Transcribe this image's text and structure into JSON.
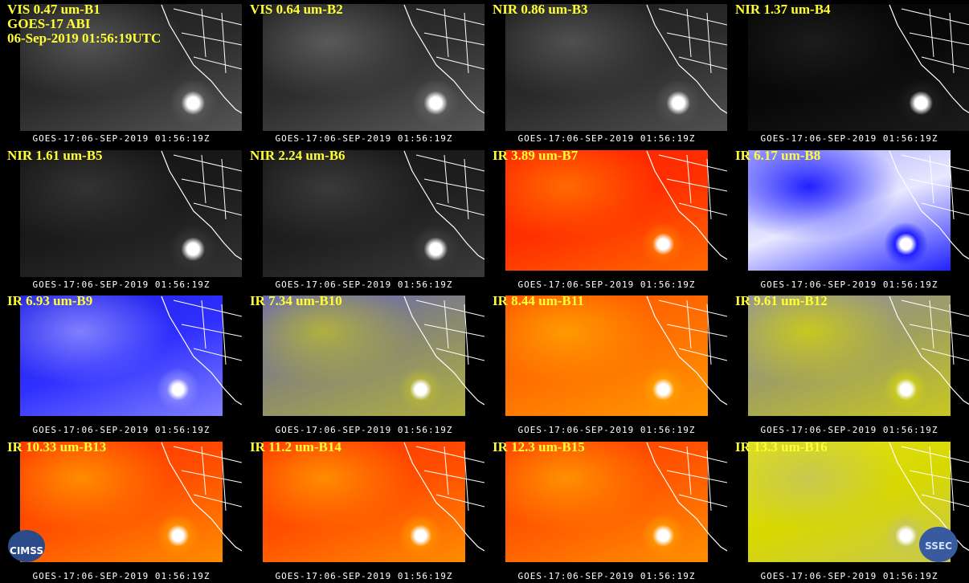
{
  "header": {
    "lines": [
      "GOES-17 ABI",
      "06-Sep-2019 01:56:19UTC"
    ]
  },
  "panels": [
    {
      "label": "VIS 0.47 um-B1",
      "footer": "GOES-17:06-SEP-2019 01:56:19Z",
      "colors": [
        "#2a2a2a",
        "#555555",
        "#1a1a1a"
      ]
    },
    {
      "label": "VIS 0.64 um-B2",
      "footer": "GOES-17:06-SEP-2019 01:56:19Z",
      "colors": [
        "#2e2e2e",
        "#5a5a5a",
        "#1c1c1c"
      ]
    },
    {
      "label": "NIR 0.86 um-B3",
      "footer": "GOES-17:06-SEP-2019 01:56:19Z",
      "colors": [
        "#2a2a2a",
        "#505050",
        "#1a1a1a"
      ]
    },
    {
      "label": "NIR 1.37 um-B4",
      "footer": "GOES-17:06-SEP-2019 01:56:19Z",
      "colors": [
        "#080808",
        "#1c1c1c",
        "#050505"
      ]
    },
    {
      "label": "NIR 1.61 um-B5",
      "footer": "GOES-17:06-SEP-2019 01:56:19Z",
      "colors": [
        "#1a1a1a",
        "#333333",
        "#121212"
      ]
    },
    {
      "label": "NIR 2.24 um-B6",
      "footer": "GOES-17:06-SEP-2019 01:56:19Z",
      "colors": [
        "#1e1e1e",
        "#3a3a3a",
        "#141414"
      ]
    },
    {
      "label": "IR 3.89 um-B7",
      "footer": "GOES-17:06-SEP-2019 01:56:19Z",
      "colors": [
        "#ff3000",
        "#ff6a00",
        "#ff2200"
      ]
    },
    {
      "label": "IR 6.17 um-B8",
      "footer": "GOES-17:06-SEP-2019 01:56:19Z",
      "colors": [
        "#e8e8ff",
        "#2020ff",
        "#a0a0ff"
      ]
    },
    {
      "label": "IR 6.93 um-B9",
      "footer": "GOES-17:06-SEP-2019 01:56:19Z",
      "colors": [
        "#3030ff",
        "#8080ff",
        "#2020e0"
      ]
    },
    {
      "label": "IR 7.34 um-B10",
      "footer": "GOES-17:06-SEP-2019 01:56:19Z",
      "colors": [
        "#8a8a70",
        "#b0b040",
        "#6060c0"
      ]
    },
    {
      "label": "IR 8.44 um-B11",
      "footer": "GOES-17:06-SEP-2019 01:56:19Z",
      "colors": [
        "#ff7000",
        "#ff9a00",
        "#ff5000"
      ]
    },
    {
      "label": "IR 9.61 um-B12",
      "footer": "GOES-17:06-SEP-2019 01:56:19Z",
      "colors": [
        "#a0a060",
        "#c8c820",
        "#9090a0"
      ]
    },
    {
      "label": "IR 10.33 um-B13",
      "footer": "GOES-17:06-SEP-2019 01:56:19Z",
      "colors": [
        "#ff5000",
        "#ff8c00",
        "#ff3000"
      ]
    },
    {
      "label": "IR 11.2 um-B14",
      "footer": "GOES-17:06-SEP-2019 01:56:19Z",
      "colors": [
        "#ff5000",
        "#ff8c00",
        "#ff3000"
      ]
    },
    {
      "label": "IR 12.3 um-B15",
      "footer": "GOES-17:06-SEP-2019 01:56:19Z",
      "colors": [
        "#ff5a00",
        "#ff9000",
        "#ff3800"
      ]
    },
    {
      "label": "IR 13.3 um-B16",
      "footer": "GOES-17:06-SEP-2019 01:56:19Z",
      "colors": [
        "#d8d800",
        "#c8c850",
        "#e0e020"
      ]
    }
  ],
  "logos": {
    "left": "CIMSS",
    "right": "SSEC"
  }
}
